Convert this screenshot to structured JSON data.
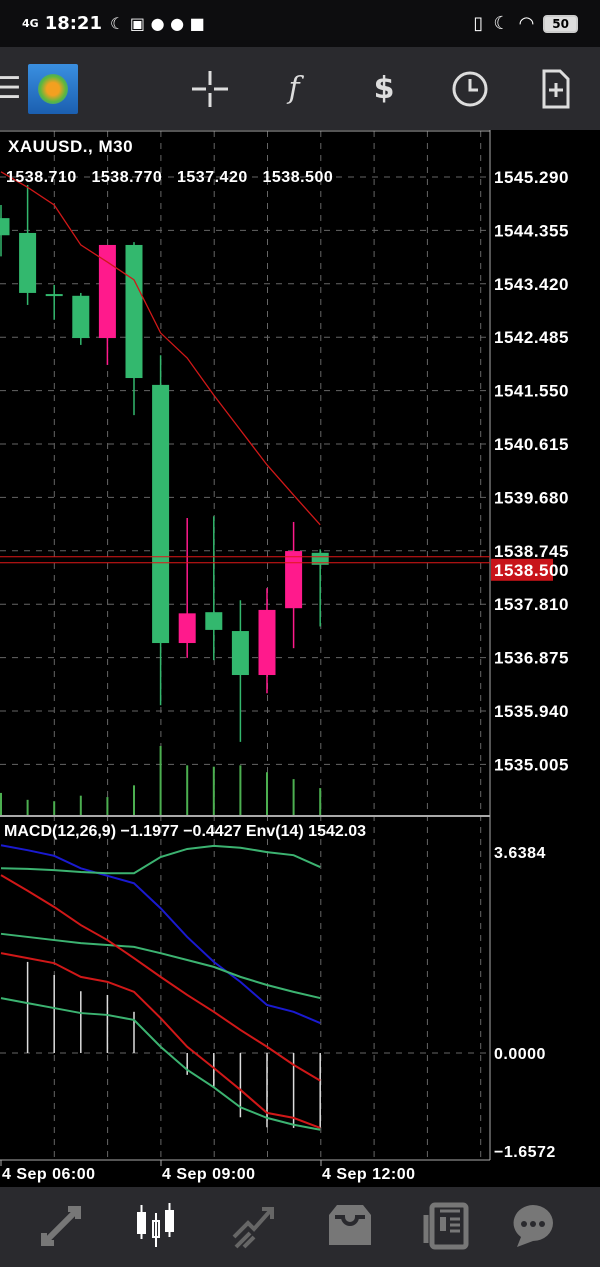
{
  "status_bar": {
    "network": "4G",
    "time": "18:21",
    "battery": "50"
  },
  "toolbar": {
    "icons": [
      "menu-icon",
      "mt4-logo",
      "crosshair-icon",
      "indicators-f-icon",
      "trade-dollar-icon",
      "timeframe-clock-icon",
      "new-order-icon"
    ]
  },
  "chart": {
    "symbol_label": "XAUUSD., M30",
    "ohlc": [
      "1538.710",
      "1538.770",
      "1537.420",
      "1538.500"
    ],
    "current_price": "1538.500",
    "price_ticks": [
      "1545.290",
      "1544.355",
      "1543.420",
      "1542.485",
      "1541.550",
      "1540.615",
      "1539.680",
      "1538.745",
      "1537.810",
      "1536.875",
      "1535.940",
      "1535.005"
    ],
    "time_labels": [
      "4 Sep 06:00",
      "4 Sep 09:00",
      "4 Sep 12:00"
    ],
    "colors": {
      "bull": "#ff1a8c",
      "bear": "#33b86e",
      "ma": "#d01818",
      "price_line": "#e01818",
      "volume": "#4caf50"
    }
  },
  "indicator": {
    "label": "MACD(12,26,9) −1.1977 −0.4427 Env(14) 1542.03",
    "ticks": [
      "3.6384",
      "0.0000",
      "−1.6572"
    ]
  },
  "chart_data": {
    "type": "candlestick",
    "candles": [
      {
        "o": 1544.57,
        "h": 1544.8,
        "l": 1543.9,
        "c": 1544.27
      },
      {
        "o": 1544.31,
        "h": 1545.15,
        "l": 1543.05,
        "c": 1543.26
      },
      {
        "o": 1543.24,
        "h": 1543.4,
        "l": 1542.79,
        "c": 1543.21
      },
      {
        "o": 1543.21,
        "h": 1543.26,
        "l": 1542.35,
        "c": 1542.47
      },
      {
        "o": 1542.47,
        "h": 1544.1,
        "l": 1542.0,
        "c": 1544.1
      },
      {
        "o": 1544.1,
        "h": 1544.15,
        "l": 1541.12,
        "c": 1541.77
      },
      {
        "o": 1541.65,
        "h": 1542.17,
        "l": 1536.04,
        "c": 1537.13
      },
      {
        "o": 1537.13,
        "h": 1539.32,
        "l": 1536.87,
        "c": 1537.65
      },
      {
        "o": 1537.67,
        "h": 1539.35,
        "l": 1536.83,
        "c": 1537.36
      },
      {
        "o": 1537.34,
        "h": 1537.88,
        "l": 1535.4,
        "c": 1536.57
      },
      {
        "o": 1536.57,
        "h": 1538.09,
        "l": 1536.25,
        "c": 1537.71
      },
      {
        "o": 1537.74,
        "h": 1539.25,
        "l": 1537.04,
        "c": 1538.74
      },
      {
        "o": 1538.71,
        "h": 1538.77,
        "l": 1537.42,
        "c": 1538.5
      }
    ],
    "moving_average": [
      1545.38,
      1545.11,
      1544.8,
      1544.1,
      1543.8,
      1543.49,
      1542.56,
      1542.12,
      1541.47,
      1540.86,
      1540.25,
      1539.72,
      1539.2
    ],
    "volume_relative": [
      0.32,
      0.22,
      0.2,
      0.28,
      0.26,
      0.43,
      1.0,
      0.72,
      0.7,
      0.72,
      0.62,
      0.52,
      0.39
    ],
    "price_range": [
      1534.6,
      1545.4
    ],
    "macd_histogram": [
      null,
      1.46,
      1.25,
      0.99,
      0.93,
      0.66,
      0.0,
      -0.35,
      -0.56,
      -1.03,
      -1.19,
      -1.2,
      -1.1977
    ],
    "macd_signal": [
      2.85,
      2.6,
      2.34,
      2.05,
      1.81,
      1.52,
      1.22,
      0.93,
      0.66,
      0.37,
      0.1,
      -0.19,
      -0.4427
    ],
    "indicator_lines": [
      {
        "color": "#1a1ad0",
        "values": [
          3.33,
          3.25,
          3.16,
          2.96,
          2.84,
          2.72,
          2.32,
          1.86,
          1.46,
          1.14,
          0.77,
          0.66,
          0.48
        ]
      },
      {
        "color": "#3cb371",
        "values": [
          2.96,
          2.95,
          2.93,
          2.9,
          2.88,
          2.88,
          3.14,
          3.27,
          3.32,
          3.29,
          3.22,
          3.17,
          2.98
        ]
      },
      {
        "color": "#3cb371",
        "values": [
          1.91,
          1.86,
          1.81,
          1.76,
          1.73,
          1.7,
          1.6,
          1.49,
          1.38,
          1.22,
          1.09,
          0.98,
          0.88
        ]
      },
      {
        "color": "#d01818",
        "values": [
          1.6,
          1.52,
          1.44,
          1.22,
          1.14,
          0.98,
          0.56,
          0.1,
          -0.24,
          -0.59,
          -0.96,
          -1.04,
          -1.2
        ]
      },
      {
        "color": "#3cb371",
        "values": [
          0.88,
          0.8,
          0.72,
          0.64,
          0.61,
          0.53,
          0.1,
          -0.27,
          -0.55,
          -0.87,
          -1.04,
          -1.15,
          -1.23
        ]
      }
    ],
    "indicator_range": [
      -1.6572,
      3.6384
    ]
  },
  "bottom_nav": {
    "items": [
      "quotes-icon",
      "chart-icon",
      "trade-icon",
      "history-icon",
      "news-icon",
      "messages-icon"
    ],
    "active": 1
  }
}
